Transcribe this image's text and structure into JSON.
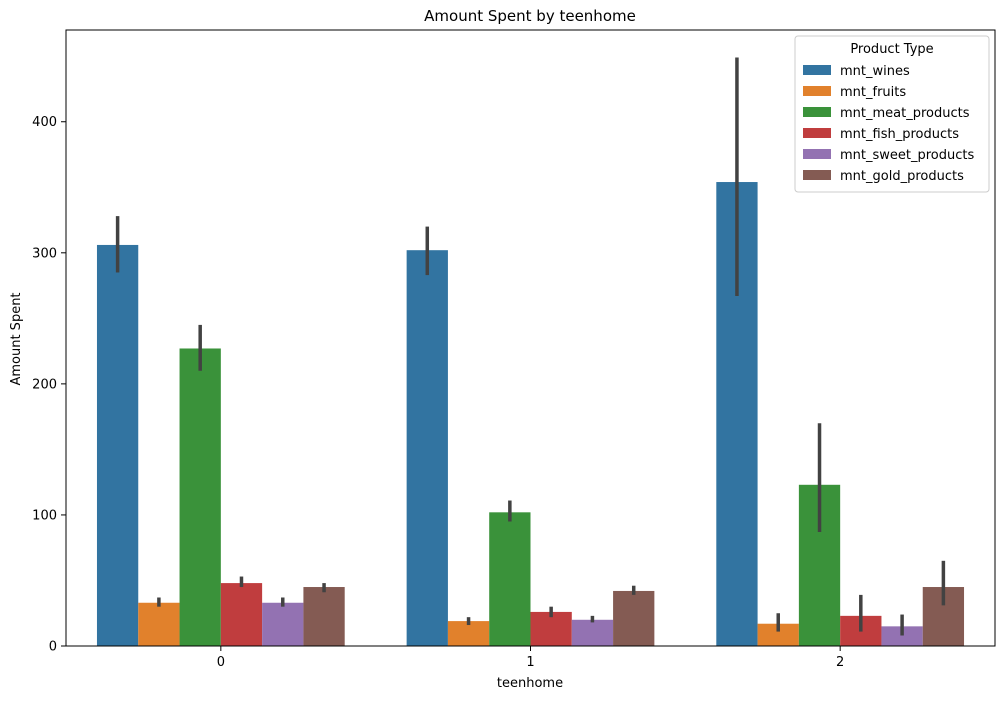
{
  "chart_data": {
    "type": "bar",
    "title": "Amount Spent by teenhome",
    "xlabel": "teenhome",
    "ylabel": "Amount Spent",
    "categories": [
      "0",
      "1",
      "2"
    ],
    "ylim": [
      0,
      470
    ],
    "yticks": [
      0,
      100,
      200,
      300,
      400
    ],
    "grid": false,
    "legend": {
      "title": "Product Type",
      "placement": "top-right"
    },
    "series": [
      {
        "name": "mnt_wines",
        "color": "#3274a1",
        "values": [
          306,
          302,
          354
        ],
        "ci": [
          [
            285,
            328
          ],
          [
            283,
            320
          ],
          [
            267,
            449
          ]
        ]
      },
      {
        "name": "mnt_fruits",
        "color": "#e1812c",
        "values": [
          33,
          19,
          17
        ],
        "ci": [
          [
            30,
            37
          ],
          [
            16,
            22
          ],
          [
            11,
            25
          ]
        ]
      },
      {
        "name": "mnt_meat_products",
        "color": "#3a923a",
        "values": [
          227,
          102,
          123
        ],
        "ci": [
          [
            210,
            245
          ],
          [
            95,
            111
          ],
          [
            87,
            170
          ]
        ]
      },
      {
        "name": "mnt_fish_products",
        "color": "#c03d3e",
        "values": [
          48,
          26,
          23
        ],
        "ci": [
          [
            45,
            53
          ],
          [
            22,
            30
          ],
          [
            11,
            39
          ]
        ]
      },
      {
        "name": "mnt_sweet_products",
        "color": "#9372b2",
        "values": [
          33,
          20,
          15
        ],
        "ci": [
          [
            30,
            37
          ],
          [
            18,
            23
          ],
          [
            8,
            24
          ]
        ]
      },
      {
        "name": "mnt_gold_products",
        "color": "#845b53",
        "values": [
          45,
          42,
          45
        ],
        "ci": [
          [
            41,
            48
          ],
          [
            39,
            46
          ],
          [
            31,
            65
          ]
        ]
      }
    ]
  }
}
